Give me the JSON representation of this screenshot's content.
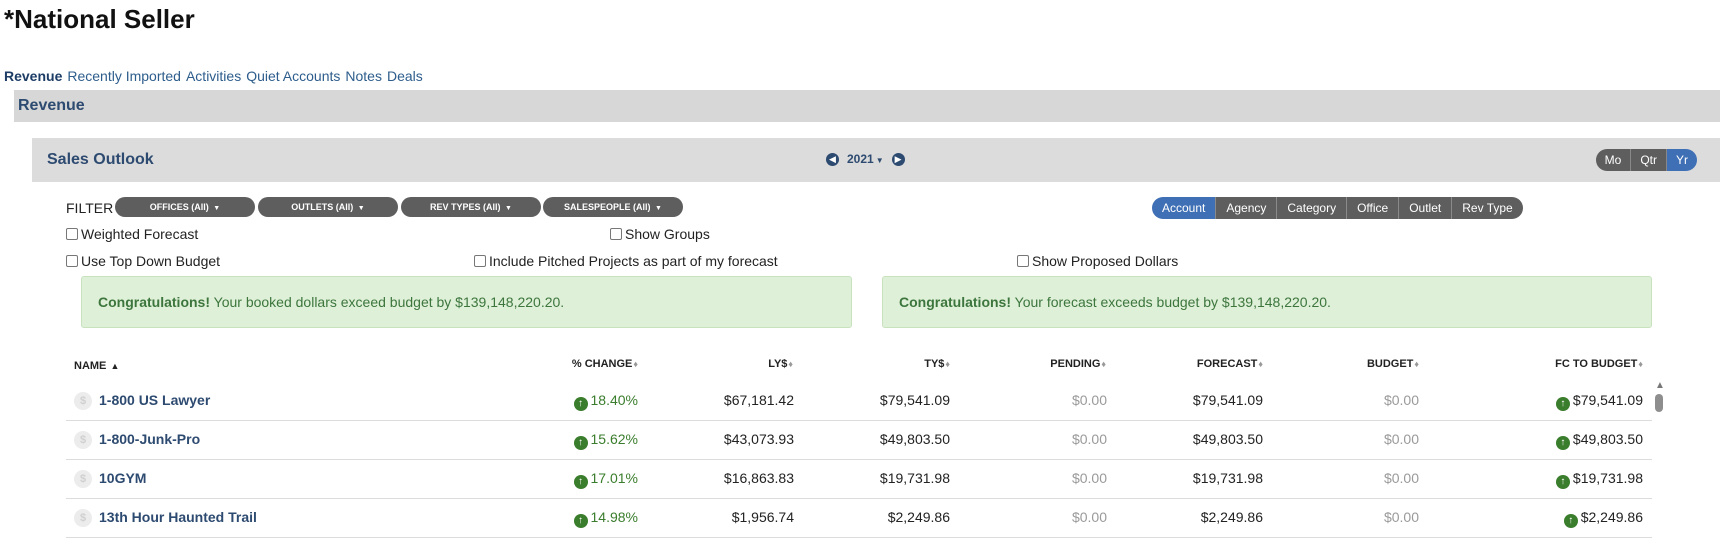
{
  "page_title": "*National Seller",
  "top_tabs": [
    {
      "label": "Revenue",
      "active": true
    },
    {
      "label": "Recently Imported"
    },
    {
      "label": "Activities"
    },
    {
      "label": "Quiet Accounts"
    },
    {
      "label": "Notes"
    },
    {
      "label": "Deals"
    }
  ],
  "section_title": "Revenue",
  "outlook": {
    "title": "Sales Outlook",
    "year": "2021",
    "periods": [
      "Mo",
      "Qtr",
      "Yr"
    ],
    "active_period": "Yr"
  },
  "filter": {
    "label": "FILTER",
    "pills": [
      "OFFICES (All)",
      "OUTLETS (All)",
      "REV TYPES (All)",
      "SALESPEOPLE (All)"
    ]
  },
  "group_by": {
    "tabs": [
      "Account",
      "Agency",
      "Category",
      "Office",
      "Outlet",
      "Rev Type"
    ],
    "active": "Account"
  },
  "options": {
    "weighted_forecast": "Weighted Forecast",
    "show_groups": "Show Groups",
    "use_top_down_budget": "Use Top Down Budget",
    "include_pitched": "Include Pitched Projects as part of my forecast",
    "show_proposed": "Show Proposed Dollars"
  },
  "alerts": {
    "booked": {
      "bold": "Congratulations!",
      "text": " Your booked dollars exceed budget by $139,148,220.20."
    },
    "forecast": {
      "bold": "Congratulations!",
      "text": " Your forecast exceeds budget by $139,148,220.20."
    }
  },
  "table": {
    "headers": {
      "name": "NAME",
      "change": "% CHANGE",
      "ly": "LY$",
      "ty": "TY$",
      "pending": "PENDING",
      "forecast": "FORECAST",
      "budget": "BUDGET",
      "fc_to_budget": "FC TO BUDGET"
    },
    "rows": [
      {
        "name": "1-800 US Lawyer",
        "change": "18.40%",
        "ly": "$67,181.42",
        "ty": "$79,541.09",
        "pending": "$0.00",
        "forecast": "$79,541.09",
        "budget": "$0.00",
        "fc_to_budget": "$79,541.09"
      },
      {
        "name": "1-800-Junk-Pro",
        "change": "15.62%",
        "ly": "$43,073.93",
        "ty": "$49,803.50",
        "pending": "$0.00",
        "forecast": "$49,803.50",
        "budget": "$0.00",
        "fc_to_budget": "$49,803.50"
      },
      {
        "name": "10GYM",
        "change": "17.01%",
        "ly": "$16,863.83",
        "ty": "$19,731.98",
        "pending": "$0.00",
        "forecast": "$19,731.98",
        "budget": "$0.00",
        "fc_to_budget": "$19,731.98"
      },
      {
        "name": "13th Hour Haunted Trail",
        "change": "14.98%",
        "ly": "$1,956.74",
        "ty": "$2,249.86",
        "pending": "$0.00",
        "forecast": "$2,249.86",
        "budget": "$0.00",
        "fc_to_budget": "$2,249.86"
      }
    ]
  },
  "colors": {
    "link": "#2d4a70",
    "positive": "#3a7d2c",
    "active_tab": "#3f6fb5",
    "pill": "#5e5e5e",
    "alert_bg": "#dff0d8"
  }
}
